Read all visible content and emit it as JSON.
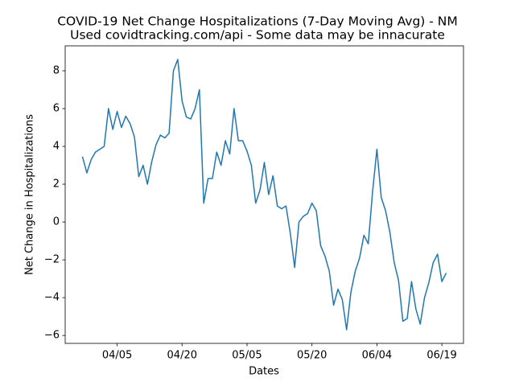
{
  "chart_data": {
    "type": "line",
    "title": "COVID-19 Net Change Hospitalizations (7-Day Moving Avg) - NM",
    "subtitle": "Used covidtracking.com/api - Some data may be innacurate",
    "x_label": "Dates",
    "y_label": "Net Change in Hospitalizations",
    "x": [
      "03/28",
      "03/29",
      "03/30",
      "03/31",
      "04/01",
      "04/02",
      "04/03",
      "04/04",
      "04/05",
      "04/06",
      "04/07",
      "04/08",
      "04/09",
      "04/10",
      "04/11",
      "04/12",
      "04/13",
      "04/14",
      "04/15",
      "04/16",
      "04/17",
      "04/18",
      "04/19",
      "04/20",
      "04/21",
      "04/22",
      "04/23",
      "04/24",
      "04/25",
      "04/26",
      "04/27",
      "04/28",
      "04/29",
      "04/30",
      "05/01",
      "05/02",
      "05/03",
      "05/04",
      "05/05",
      "05/06",
      "05/07",
      "05/08",
      "05/09",
      "05/10",
      "05/11",
      "05/12",
      "05/13",
      "05/14",
      "05/15",
      "05/16",
      "05/17",
      "05/18",
      "05/19",
      "05/20",
      "05/21",
      "05/22",
      "05/23",
      "05/24",
      "05/25",
      "05/26",
      "05/27",
      "05/28",
      "05/29",
      "05/30",
      "05/31",
      "06/01",
      "06/02",
      "06/03",
      "06/04",
      "06/05",
      "06/06",
      "06/07",
      "06/08",
      "06/09",
      "06/10",
      "06/11",
      "06/12",
      "06/13",
      "06/14",
      "06/15",
      "06/16",
      "06/17",
      "06/18",
      "06/19",
      "06/20"
    ],
    "series": [
      {
        "color": "#1f77b4",
        "values": [
          3.45,
          2.6,
          3.3,
          3.7,
          3.85,
          4.0,
          6.0,
          4.9,
          5.85,
          5.0,
          5.6,
          5.2,
          4.5,
          2.4,
          3.0,
          2.0,
          3.2,
          4.1,
          4.6,
          4.45,
          4.7,
          8.0,
          8.6,
          6.4,
          5.55,
          5.45,
          6.0,
          7.0,
          1.0,
          2.3,
          2.3,
          3.7,
          3.0,
          4.3,
          3.6,
          6.0,
          4.3,
          4.3,
          3.75,
          3.0,
          1.0,
          1.7,
          3.15,
          1.45,
          2.45,
          0.85,
          0.7,
          0.85,
          -0.6,
          -2.4,
          0.0,
          0.3,
          0.45,
          1.0,
          0.6,
          -1.25,
          -1.8,
          -2.6,
          -4.4,
          -3.55,
          -4.1,
          -5.7,
          -3.7,
          -2.6,
          -1.9,
          -0.7,
          -1.15,
          1.6,
          3.85,
          1.3,
          0.6,
          -0.55,
          -2.15,
          -3.1,
          -5.25,
          -5.1,
          -3.15,
          -4.6,
          -5.4,
          -4.0,
          -3.2,
          -2.15,
          -1.7,
          -3.15,
          -2.7
        ]
      }
    ],
    "xlim": [
      "03/24",
      "06/24"
    ],
    "xticks": [
      "04/05",
      "04/20",
      "05/05",
      "05/20",
      "06/04",
      "06/19"
    ],
    "ylim": [
      -6.42,
      9.32
    ],
    "yticks": [
      {
        "value": -6,
        "label": "−6"
      },
      {
        "value": -4,
        "label": "−4"
      },
      {
        "value": -2,
        "label": "−2"
      },
      0,
      2,
      4,
      6,
      8
    ],
    "grid": false
  }
}
